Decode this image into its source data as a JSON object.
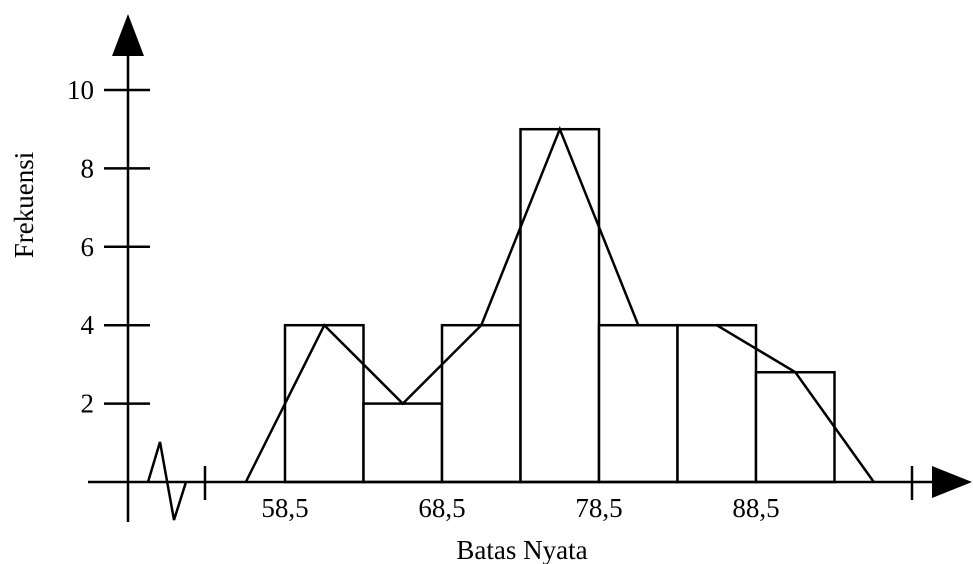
{
  "chart_data": {
    "type": "bar",
    "xlabel": "Batas Nyata",
    "ylabel": "Frekuensi",
    "x_tick_labels": [
      "58,5",
      "68,5",
      "78,5",
      "88,5"
    ],
    "x_tick_values": [
      58.5,
      68.5,
      78.5,
      88.5
    ],
    "y_tick_labels": [
      "2",
      "4",
      "6",
      "8",
      "10"
    ],
    "y_tick_values": [
      2,
      4,
      6,
      8,
      10
    ],
    "ylim": [
      0,
      10
    ],
    "bins": [
      {
        "lower": 58.5,
        "upper": 63.5,
        "frequency": 4
      },
      {
        "lower": 63.5,
        "upper": 68.5,
        "frequency": 2
      },
      {
        "lower": 68.5,
        "upper": 73.5,
        "frequency": 4
      },
      {
        "lower": 73.5,
        "upper": 78.5,
        "frequency": 9
      },
      {
        "lower": 78.5,
        "upper": 83.5,
        "frequency": 4
      },
      {
        "lower": 83.5,
        "upper": 88.5,
        "frequency": 4
      },
      {
        "lower": 88.5,
        "upper": 93.5,
        "frequency": 2.8
      }
    ],
    "polygon": {
      "x": [
        56.0,
        61.0,
        66.0,
        71.0,
        76.0,
        81.0,
        86.0,
        91.0,
        96.0
      ],
      "y": [
        0,
        4,
        2,
        4,
        9,
        4,
        4,
        2.8,
        0
      ]
    },
    "axis_break": true
  }
}
